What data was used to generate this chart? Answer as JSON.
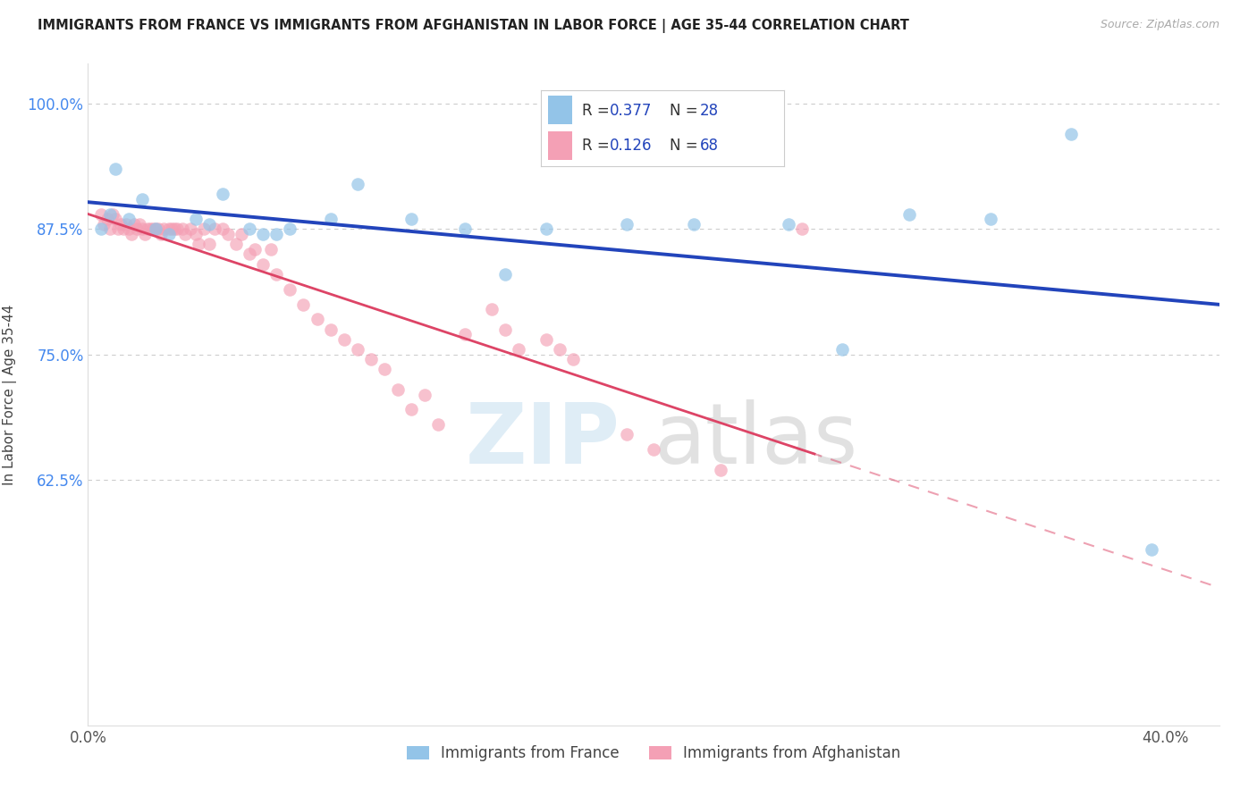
{
  "title": "IMMIGRANTS FROM FRANCE VS IMMIGRANTS FROM AFGHANISTAN IN LABOR FORCE | AGE 35-44 CORRELATION CHART",
  "source": "Source: ZipAtlas.com",
  "ylabel": "In Labor Force | Age 35-44",
  "xlim": [
    0.0,
    0.42
  ],
  "ylim": [
    0.38,
    1.04
  ],
  "france_R": 0.377,
  "france_N": 28,
  "afghanistan_R": 0.126,
  "afghanistan_N": 68,
  "france_color": "#93C4E8",
  "afghanistan_color": "#F4A0B5",
  "france_trend_color": "#2244BB",
  "afghanistan_trend_color": "#DD4466",
  "background_color": "#FFFFFF",
  "grid_color": "#CCCCCC",
  "ytick_positions": [
    0.625,
    0.75,
    0.875,
    1.0
  ],
  "ytick_labels": [
    "62.5%",
    "75.0%",
    "87.5%",
    "100.0%"
  ],
  "xtick_positions": [
    0.0,
    0.1,
    0.2,
    0.3,
    0.4
  ],
  "xtick_labels": [
    "0.0%",
    "",
    "",
    "",
    "40.0%"
  ],
  "france_x": [
    0.005,
    0.008,
    0.01,
    0.015,
    0.02,
    0.025,
    0.03,
    0.04,
    0.045,
    0.05,
    0.06,
    0.065,
    0.07,
    0.075,
    0.09,
    0.1,
    0.12,
    0.14,
    0.155,
    0.17,
    0.2,
    0.225,
    0.26,
    0.28,
    0.305,
    0.335,
    0.365,
    0.395
  ],
  "france_y": [
    0.875,
    0.89,
    0.935,
    0.885,
    0.905,
    0.875,
    0.87,
    0.885,
    0.88,
    0.91,
    0.875,
    0.87,
    0.87,
    0.875,
    0.885,
    0.92,
    0.885,
    0.875,
    0.83,
    0.875,
    0.88,
    0.88,
    0.88,
    0.755,
    0.89,
    0.885,
    0.97,
    0.555
  ],
  "afghanistan_x": [
    0.005,
    0.006,
    0.007,
    0.008,
    0.009,
    0.01,
    0.011,
    0.012,
    0.013,
    0.014,
    0.015,
    0.016,
    0.017,
    0.018,
    0.019,
    0.02,
    0.021,
    0.022,
    0.023,
    0.024,
    0.025,
    0.026,
    0.027,
    0.028,
    0.03,
    0.031,
    0.032,
    0.033,
    0.035,
    0.036,
    0.038,
    0.04,
    0.041,
    0.043,
    0.045,
    0.047,
    0.05,
    0.052,
    0.055,
    0.057,
    0.06,
    0.062,
    0.065,
    0.068,
    0.07,
    0.075,
    0.08,
    0.085,
    0.09,
    0.095,
    0.1,
    0.105,
    0.11,
    0.115,
    0.12,
    0.125,
    0.13,
    0.14,
    0.15,
    0.155,
    0.16,
    0.17,
    0.175,
    0.18,
    0.2,
    0.21,
    0.235,
    0.265
  ],
  "afghanistan_y": [
    0.89,
    0.88,
    0.885,
    0.875,
    0.89,
    0.885,
    0.875,
    0.88,
    0.875,
    0.88,
    0.875,
    0.87,
    0.88,
    0.875,
    0.88,
    0.875,
    0.87,
    0.875,
    0.875,
    0.875,
    0.875,
    0.875,
    0.87,
    0.875,
    0.875,
    0.875,
    0.875,
    0.875,
    0.875,
    0.87,
    0.875,
    0.87,
    0.86,
    0.875,
    0.86,
    0.875,
    0.875,
    0.87,
    0.86,
    0.87,
    0.85,
    0.855,
    0.84,
    0.855,
    0.83,
    0.815,
    0.8,
    0.785,
    0.775,
    0.765,
    0.755,
    0.745,
    0.735,
    0.715,
    0.695,
    0.71,
    0.68,
    0.77,
    0.795,
    0.775,
    0.755,
    0.765,
    0.755,
    0.745,
    0.67,
    0.655,
    0.635,
    0.875
  ]
}
